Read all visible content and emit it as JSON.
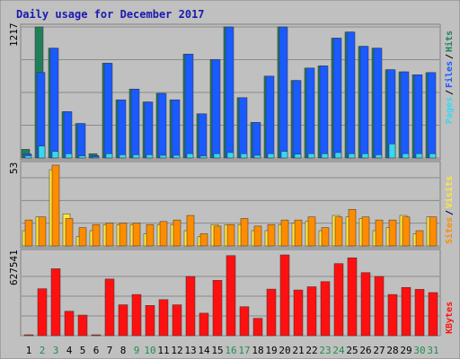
{
  "title": "Daily usage for December 2017",
  "colors": {
    "hits": "#1f7f5a",
    "files": "#1a5aff",
    "pages": "#38d8ee",
    "visits": "#ffe63c",
    "sites": "#ff8c00",
    "kbytes": "#ff1010",
    "weekend": "#1f8f4f",
    "weekday": "#000000",
    "title": "#1a1ab0",
    "panel": "#c0c0c0"
  },
  "chart_data": [
    {
      "type": "bar",
      "panel": "hits-files-pages",
      "ymax_label": "1217",
      "ylim": [
        0,
        1217
      ],
      "side_labels": [
        "Pages",
        "Files",
        "Hits"
      ],
      "categories": [
        "1",
        "2",
        "3",
        "4",
        "5",
        "6",
        "7",
        "8",
        "9",
        "10",
        "11",
        "12",
        "13",
        "14",
        "15",
        "16",
        "17",
        "18",
        "19",
        "20",
        "21",
        "22",
        "23",
        "24",
        "25",
        "26",
        "27",
        "28",
        "29",
        "30",
        "31"
      ],
      "series": [
        {
          "name": "Hits",
          "values": [
            80,
            1217,
            1020,
            430,
            320,
            40,
            880,
            540,
            640,
            520,
            600,
            540,
            965,
            410,
            915,
            1217,
            560,
            330,
            760,
            1217,
            720,
            835,
            855,
            1113,
            1170,
            1037,
            1020,
            820,
            800,
            773,
            793
          ]
        },
        {
          "name": "Files",
          "values": [
            38,
            795,
            1020,
            430,
            320,
            23,
            880,
            540,
            640,
            520,
            600,
            540,
            965,
            410,
            915,
            1217,
            560,
            330,
            760,
            1217,
            720,
            835,
            855,
            1113,
            1170,
            1037,
            1020,
            820,
            800,
            773,
            793
          ]
        },
        {
          "name": "Pages",
          "values": [
            20,
            110,
            60,
            40,
            20,
            8,
            40,
            30,
            30,
            30,
            25,
            25,
            40,
            20,
            40,
            50,
            40,
            25,
            40,
            60,
            35,
            40,
            40,
            50,
            40,
            40,
            30,
            130,
            40,
            40,
            40
          ]
        }
      ]
    },
    {
      "type": "bar",
      "panel": "visits-sites",
      "ymax_label": "53",
      "ylim": [
        0,
        53
      ],
      "side_labels": [
        "Sites",
        "Visits"
      ],
      "categories": [
        "1",
        "2",
        "3",
        "4",
        "5",
        "6",
        "7",
        "8",
        "9",
        "10",
        "11",
        "12",
        "13",
        "14",
        "15",
        "16",
        "17",
        "18",
        "19",
        "20",
        "21",
        "22",
        "23",
        "24",
        "25",
        "26",
        "27",
        "28",
        "29",
        "30",
        "31"
      ],
      "series": [
        {
          "name": "Visits",
          "values": [
            10,
            19,
            50,
            21,
            6,
            10,
            14,
            14,
            14,
            8,
            14,
            14,
            10,
            6,
            14,
            14,
            14,
            10,
            10,
            14,
            15,
            16,
            10,
            20,
            19,
            18,
            10,
            12,
            20,
            8,
            19
          ]
        },
        {
          "name": "Sites",
          "values": [
            17,
            19,
            53,
            18,
            12,
            14,
            15,
            15,
            15,
            14,
            16,
            17,
            20,
            8,
            13,
            14,
            18,
            13,
            14,
            17,
            17,
            19,
            12,
            19,
            24,
            19,
            17,
            17,
            19,
            10,
            19
          ]
        }
      ]
    },
    {
      "type": "bar",
      "panel": "kbytes",
      "ymax_label": "627541",
      "ylim": [
        0,
        627541
      ],
      "side_labels": [
        "KBytes"
      ],
      "categories": [
        "1",
        "2",
        "3",
        "4",
        "5",
        "6",
        "7",
        "8",
        "9",
        "10",
        "11",
        "12",
        "13",
        "14",
        "15",
        "16",
        "17",
        "18",
        "19",
        "20",
        "21",
        "22",
        "23",
        "24",
        "25",
        "26",
        "27",
        "28",
        "29",
        "30",
        "31"
      ],
      "series": [
        {
          "name": "KBytes",
          "values": [
            5000,
            365000,
            520000,
            190000,
            160000,
            5000,
            440000,
            240000,
            320000,
            235000,
            280000,
            240000,
            460000,
            175000,
            430000,
            622000,
            225000,
            135000,
            362000,
            627541,
            355000,
            380000,
            420000,
            560000,
            605000,
            490000,
            460000,
            320000,
            375000,
            360000,
            335000
          ]
        }
      ]
    }
  ]
}
